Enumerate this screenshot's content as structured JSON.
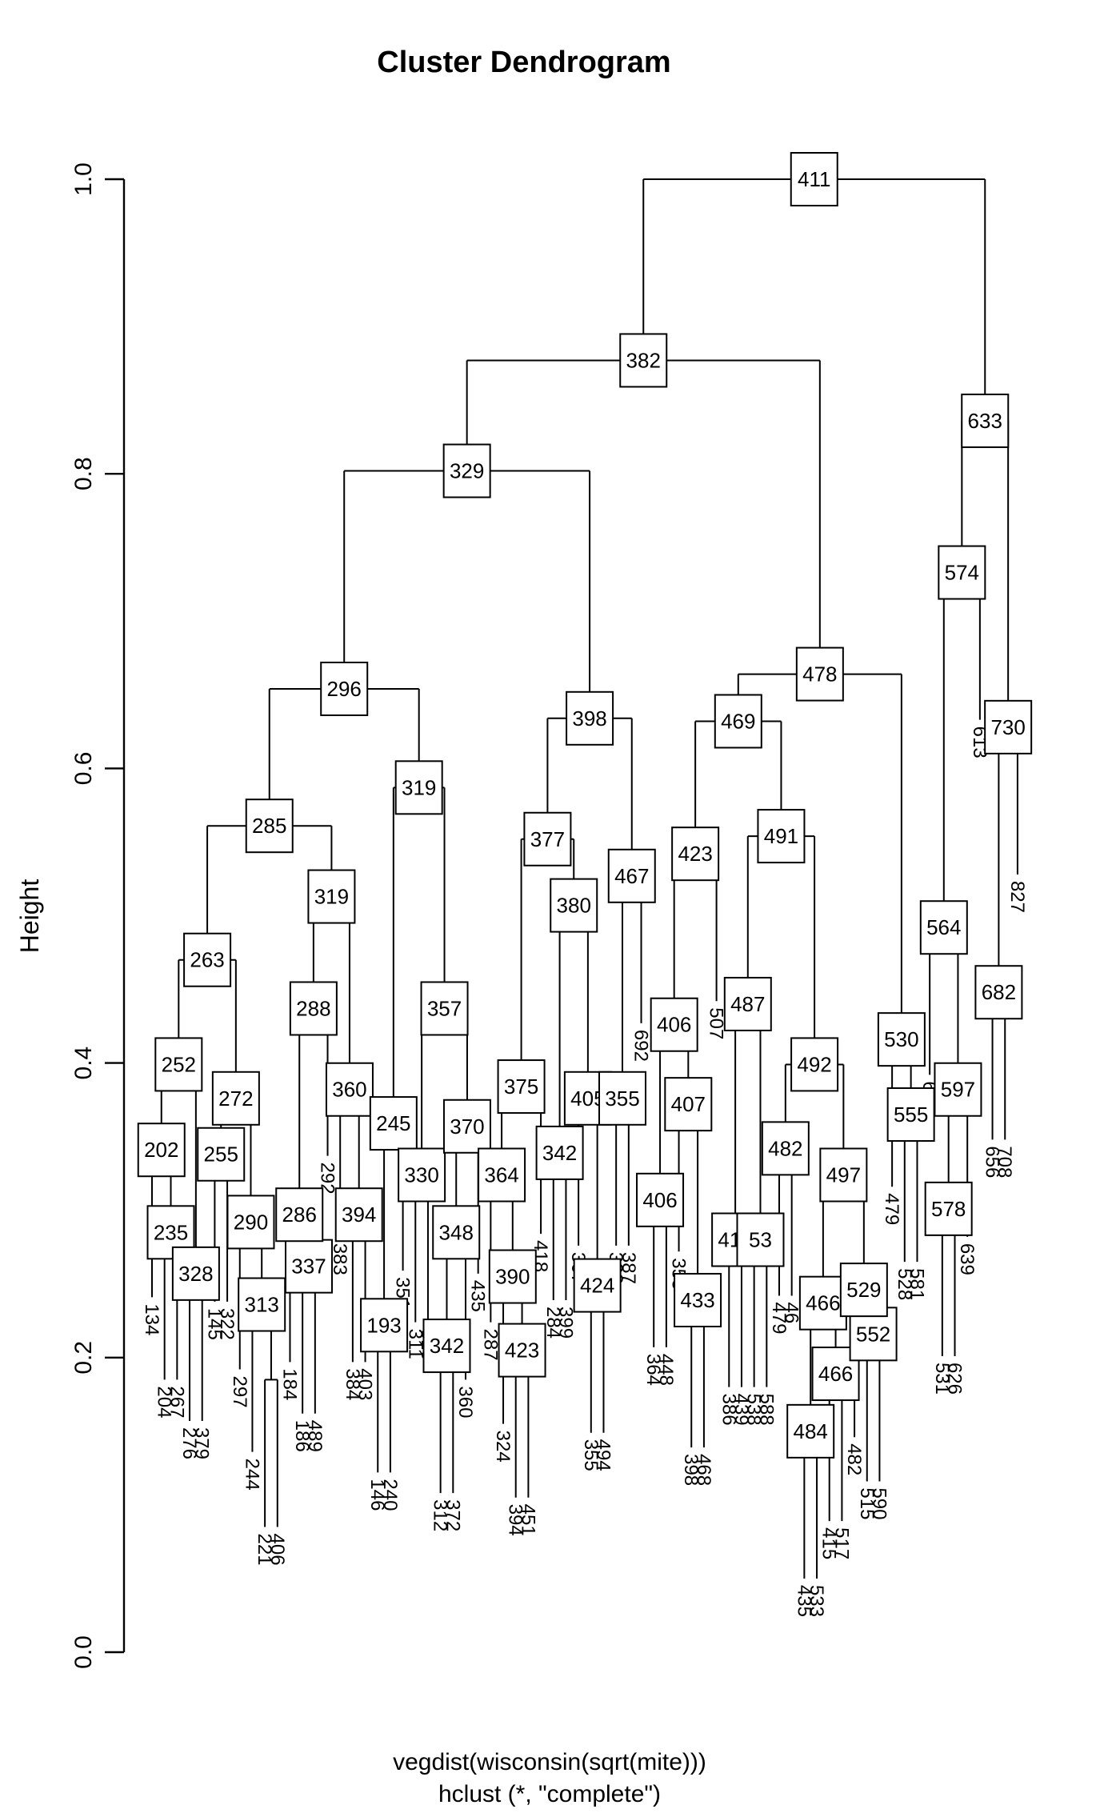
{
  "chart_data": {
    "type": "dendrogram",
    "title": "Cluster Dendrogram",
    "ylabel": "Height",
    "xlabel_line1": "vegdist(wisconsin(sqrt(mite)))",
    "xlabel_line2": "hclust (*, \"complete\")",
    "yticks": [
      "0.0",
      "0.2",
      "0.4",
      "0.6",
      "0.8",
      "1.0"
    ],
    "ylim": [
      0,
      1
    ],
    "hang": 0.1,
    "n_leaves": 70,
    "line_color": "#000000",
    "box_fill": "#ffffff",
    "tree": [
      "411",
      1.0,
      [
        "382",
        0.877,
        [
          "329",
          0.802,
          [
            "296",
            0.654,
            [
              "285",
              0.561,
              [
                "263",
                0.47,
                [
                  "252",
                  0.399,
                  [
                    "202",
                    0.341,
                    "134",
                    [
                      "235",
                      0.285,
                      "204",
                      "267"
                    ]
                  ],
                  [
                    "328",
                    0.257,
                    "276",
                    "379"
                  ]
                ],
                [
                  "272",
                  0.376,
                  [
                    "255",
                    0.338,
                    "145",
                    "322"
                  ],
                  [
                    "290",
                    0.292,
                    "297",
                    [
                      "313",
                      0.236,
                      "244",
                      [
                        "",
                        0.185,
                        "221",
                        "406"
                      ]
                    ]
                  ]
                ]
              ],
              [
                "319",
                0.513,
                [
                  "288",
                  0.437,
                  [
                    "286",
                    0.297,
                    "184",
                    [
                      "337",
                      0.262,
                      "186",
                      "489"
                    ]
                  ],
                  "292"
                ],
                [
                  "360",
                  0.382,
                  "383",
                  [
                    "394",
                    0.297,
                    "384",
                    "403"
                  ]
                ]
              ]
            ],
            [
              "319",
              0.587,
              [
                "245",
                0.359,
                [
                  "193",
                  0.222,
                  "146",
                  "240"
                ],
                "351"
              ],
              [
                "357",
                0.437,
                [
                  "330",
                  0.324,
                  "311",
                  "310"
                ],
                [
                  "370",
                  0.357,
                  [
                    "348",
                    0.285,
                    [
                      "342",
                      0.208,
                      "312",
                      "372"
                    ],
                    "360"
                  ],
                  "435"
                ]
              ]
            ]
          ],
          [
            "398",
            0.634,
            [
              "377",
              0.552,
              [
                "375",
                0.384,
                [
                  "364",
                  0.324,
                  "287",
                  [
                    "390",
                    0.255,
                    "324",
                    [
                      "423",
                      0.205,
                      "394",
                      "451"
                    ]
                  ]
                ],
                "418"
              ],
              [
                "380",
                0.507,
                [
                  "342",
                  0.339,
                  "284",
                  "399"
                ],
                [
                  "405",
                  0.376,
                  "367",
                  [
                    "424",
                    0.249,
                    "355",
                    "494"
                  ]
                ]
              ]
            ],
            [
              "467",
              0.527,
              [
                "355",
                0.376,
                "323",
                "387"
              ],
              "692"
            ]
          ]
        ],
        [
          "478",
          0.664,
          [
            "469",
            0.632,
            [
              "423",
              0.542,
              [
                "406",
                0.426,
                [
                  "406",
                  0.307,
                  "364",
                  "448"
                ],
                [
                  "407",
                  0.372,
                  "353",
                  [
                    "433",
                    0.239,
                    "398",
                    "468"
                  ]
                ]
              ],
              "507"
            ],
            [
              "491",
              0.554,
              [
                "487",
                0.44,
                [
                  "410",
                  0.28,
                  "386",
                  "439"
                ],
                [
                  "53",
                  0.28,
                  "538",
                  "588"
                ]
              ],
              [
                "492",
                0.399,
                [
                  "482",
                  0.342,
                  "479",
                  "46"
                ],
                [
                  "497",
                  0.324,
                  [
                    "466",
                    0.237,
                    [
                      "484",
                      0.15,
                      "435",
                      "533"
                    ],
                    [
                      "466",
                      0.189,
                      "415",
                      "517"
                    ]
                  ],
                  [
                    "529",
                    0.246,
                    "482",
                    [
                      "552",
                      0.216,
                      "515",
                      "590"
                    ]
                  ]
                ]
              ]
            ]
          ],
          [
            "530",
            0.416,
            "479",
            [
              "555",
              0.365,
              "528",
              "581"
            ]
          ]
        ]
      ],
      [
        "633",
        0.836,
        [
          "574",
          0.733,
          [
            "564",
            0.492,
            "66",
            [
              "597",
              0.382,
              [
                "578",
                0.301,
                "531",
                "626"
              ],
              "639"
            ]
          ],
          "613"
        ],
        [
          "730",
          0.628,
          [
            "682",
            0.448,
            "656",
            "708"
          ],
          "827"
        ]
      ]
    ]
  }
}
